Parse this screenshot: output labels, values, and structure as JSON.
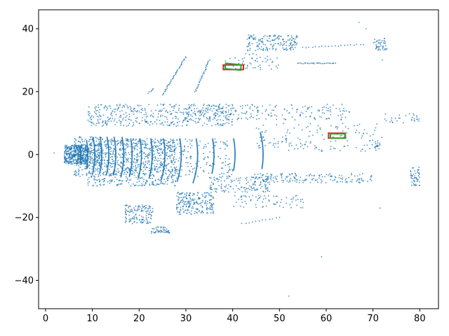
{
  "chart_data": {
    "type": "scatter",
    "title": "",
    "xlabel": "",
    "ylabel": "",
    "xlim": [
      -1.5,
      84
    ],
    "ylim": [
      -49,
      46
    ],
    "xticks": [
      0,
      10,
      20,
      30,
      40,
      50,
      60,
      70,
      80
    ],
    "yticks": [
      40,
      20,
      0,
      -20,
      -40
    ],
    "xtick_labels": [
      "0",
      "10",
      "20",
      "30",
      "40",
      "50",
      "60",
      "70",
      "80"
    ],
    "ytick_labels": [
      "40",
      "20",
      "0",
      "−20",
      "−40"
    ],
    "grid": false,
    "legend": "none",
    "point_color": "#1f77b4",
    "point_clusters": [
      {
        "x_range": [
          4.0,
          9.0
        ],
        "y_range": [
          -3.0,
          3.0
        ],
        "n": 400
      },
      {
        "x_range": [
          6.0,
          12.0
        ],
        "y_range": [
          -7.0,
          6.0
        ],
        "n": 220
      },
      {
        "x_range": [
          9.0,
          28.0
        ],
        "y_range": [
          -10.0,
          5.0
        ],
        "n": 700
      },
      {
        "x_range": [
          12.0,
          40.0
        ],
        "y_range": [
          -7.0,
          5.0
        ],
        "n": 350
      },
      {
        "x_range": [
          9.0,
          40.0
        ],
        "y_range": [
          9.0,
          16.0
        ],
        "n": 420
      },
      {
        "x_range": [
          30.0,
          65.0
        ],
        "y_range": [
          11.0,
          16.0
        ],
        "n": 200
      },
      {
        "x_range": [
          43.0,
          54.0
        ],
        "y_range": [
          33.0,
          38.0
        ],
        "n": 170
      },
      {
        "x_range": [
          38.0,
          50.0
        ],
        "y_range": [
          27.0,
          32.0
        ],
        "n": 55
      },
      {
        "x_range": [
          17.0,
          23.0
        ],
        "y_range": [
          -22.0,
          -16.0
        ],
        "n": 130
      },
      {
        "x_range": [
          22.5,
          26.5
        ],
        "y_range": [
          -25.0,
          -23.0
        ],
        "n": 50
      },
      {
        "x_range": [
          28.0,
          36.0
        ],
        "y_range": [
          -19.0,
          -12.0
        ],
        "n": 210
      },
      {
        "x_range": [
          35.0,
          48.0
        ],
        "y_range": [
          -12.0,
          -7.0
        ],
        "n": 140
      },
      {
        "x_range": [
          40.0,
          56.0
        ],
        "y_range": [
          -17.0,
          -13.0
        ],
        "n": 70
      },
      {
        "x_range": [
          44.0,
          70.0
        ],
        "y_range": [
          -9.0,
          -6.0
        ],
        "n": 170
      },
      {
        "x_range": [
          45.0,
          72.0
        ],
        "y_range": [
          1.0,
          10.0
        ],
        "n": 150
      },
      {
        "x_range": [
          70.0,
          73.0
        ],
        "y_range": [
          33.0,
          37.0
        ],
        "n": 45
      },
      {
        "x_range": [
          78.0,
          80.0
        ],
        "y_range": [
          -10.0,
          -4.0
        ],
        "n": 50
      },
      {
        "x_range": [
          72.0,
          80.0
        ],
        "y_range": [
          10.0,
          13.0
        ],
        "n": 30
      },
      {
        "x_range": [
          70.5,
          71.5
        ],
        "y_range": [
          2.0,
          5.0
        ],
        "n": 15
      }
    ],
    "point_arcs": [
      {
        "x": 7.5,
        "y_range": [
          -2.5,
          2.5
        ]
      },
      {
        "x": 9.0,
        "y_range": [
          -4.5,
          4.5
        ]
      },
      {
        "x": 10.5,
        "y_range": [
          -5.5,
          5.5
        ]
      },
      {
        "x": 12.0,
        "y_range": [
          -6.0,
          5.5
        ]
      },
      {
        "x": 13.5,
        "y_range": [
          -6.5,
          5.5
        ]
      },
      {
        "x": 15.0,
        "y_range": [
          -6.5,
          5.5
        ]
      },
      {
        "x": 16.7,
        "y_range": [
          -7.0,
          5.5
        ]
      },
      {
        "x": 18.5,
        "y_range": [
          -7.0,
          5.0
        ]
      },
      {
        "x": 20.5,
        "y_range": [
          -7.5,
          5.0
        ]
      },
      {
        "x": 22.8,
        "y_range": [
          -7.5,
          5.0
        ]
      },
      {
        "x": 25.5,
        "y_range": [
          -8.0,
          5.0
        ]
      },
      {
        "x": 29.0,
        "y_range": [
          -8.5,
          5.0
        ]
      },
      {
        "x": 32.5,
        "y_range": [
          -9.0,
          5.0
        ]
      },
      {
        "x": 36.0,
        "y_range": [
          -6.0,
          5.0
        ]
      },
      {
        "x": 40.5,
        "y_range": [
          -5.0,
          5.0
        ]
      },
      {
        "x": 46.5,
        "y_range": [
          -4.5,
          7.0
        ]
      }
    ],
    "point_lines": [
      {
        "from": [
          25.0,
          19.0
        ],
        "to": [
          30.0,
          31.0
        ],
        "n": 40
      },
      {
        "from": [
          32.0,
          20.0
        ],
        "to": [
          35.0,
          30.0
        ],
        "n": 30
      },
      {
        "from": [
          22.0,
          19.5
        ],
        "to": [
          23.0,
          21.0
        ],
        "n": 6
      },
      {
        "from": [
          42.0,
          -22.0
        ],
        "to": [
          50.0,
          -20.0
        ],
        "n": 12
      },
      {
        "from": [
          54.0,
          29.0
        ],
        "to": [
          62.0,
          29.0
        ],
        "n": 30
      },
      {
        "from": [
          55.0,
          34.0
        ],
        "to": [
          68.0,
          35.0
        ],
        "n": 20
      }
    ],
    "point_singles": [
      [
        1.8,
        0.5
      ],
      [
        59.0,
        -32.5
      ],
      [
        52.0,
        -45.0
      ],
      [
        71.5,
        -17.0
      ],
      [
        72.0,
        30.0
      ],
      [
        67.0,
        42.0
      ],
      [
        68.5,
        40.0
      ]
    ],
    "boxes": [
      {
        "label": "upper-box",
        "red": [
          [
            38.0,
            28.5
          ],
          [
            42.3,
            28.5
          ],
          [
            42.3,
            27.0
          ],
          [
            38.0,
            27.0
          ]
        ],
        "green": [
          [
            38.5,
            29.0
          ],
          [
            41.8,
            28.5
          ],
          [
            41.7,
            26.8
          ],
          [
            38.4,
            27.3
          ]
        ]
      },
      {
        "label": "right-box",
        "red": [
          [
            60.5,
            6.8
          ],
          [
            64.0,
            6.8
          ],
          [
            64.0,
            5.2
          ],
          [
            60.5,
            5.2
          ]
        ],
        "green": [
          [
            60.9,
            6.6
          ],
          [
            64.1,
            6.6
          ],
          [
            64.1,
            5.2
          ],
          [
            60.9,
            5.2
          ]
        ]
      }
    ],
    "box_colors": {
      "red": "#d62728",
      "green": "#2ca02c"
    }
  }
}
